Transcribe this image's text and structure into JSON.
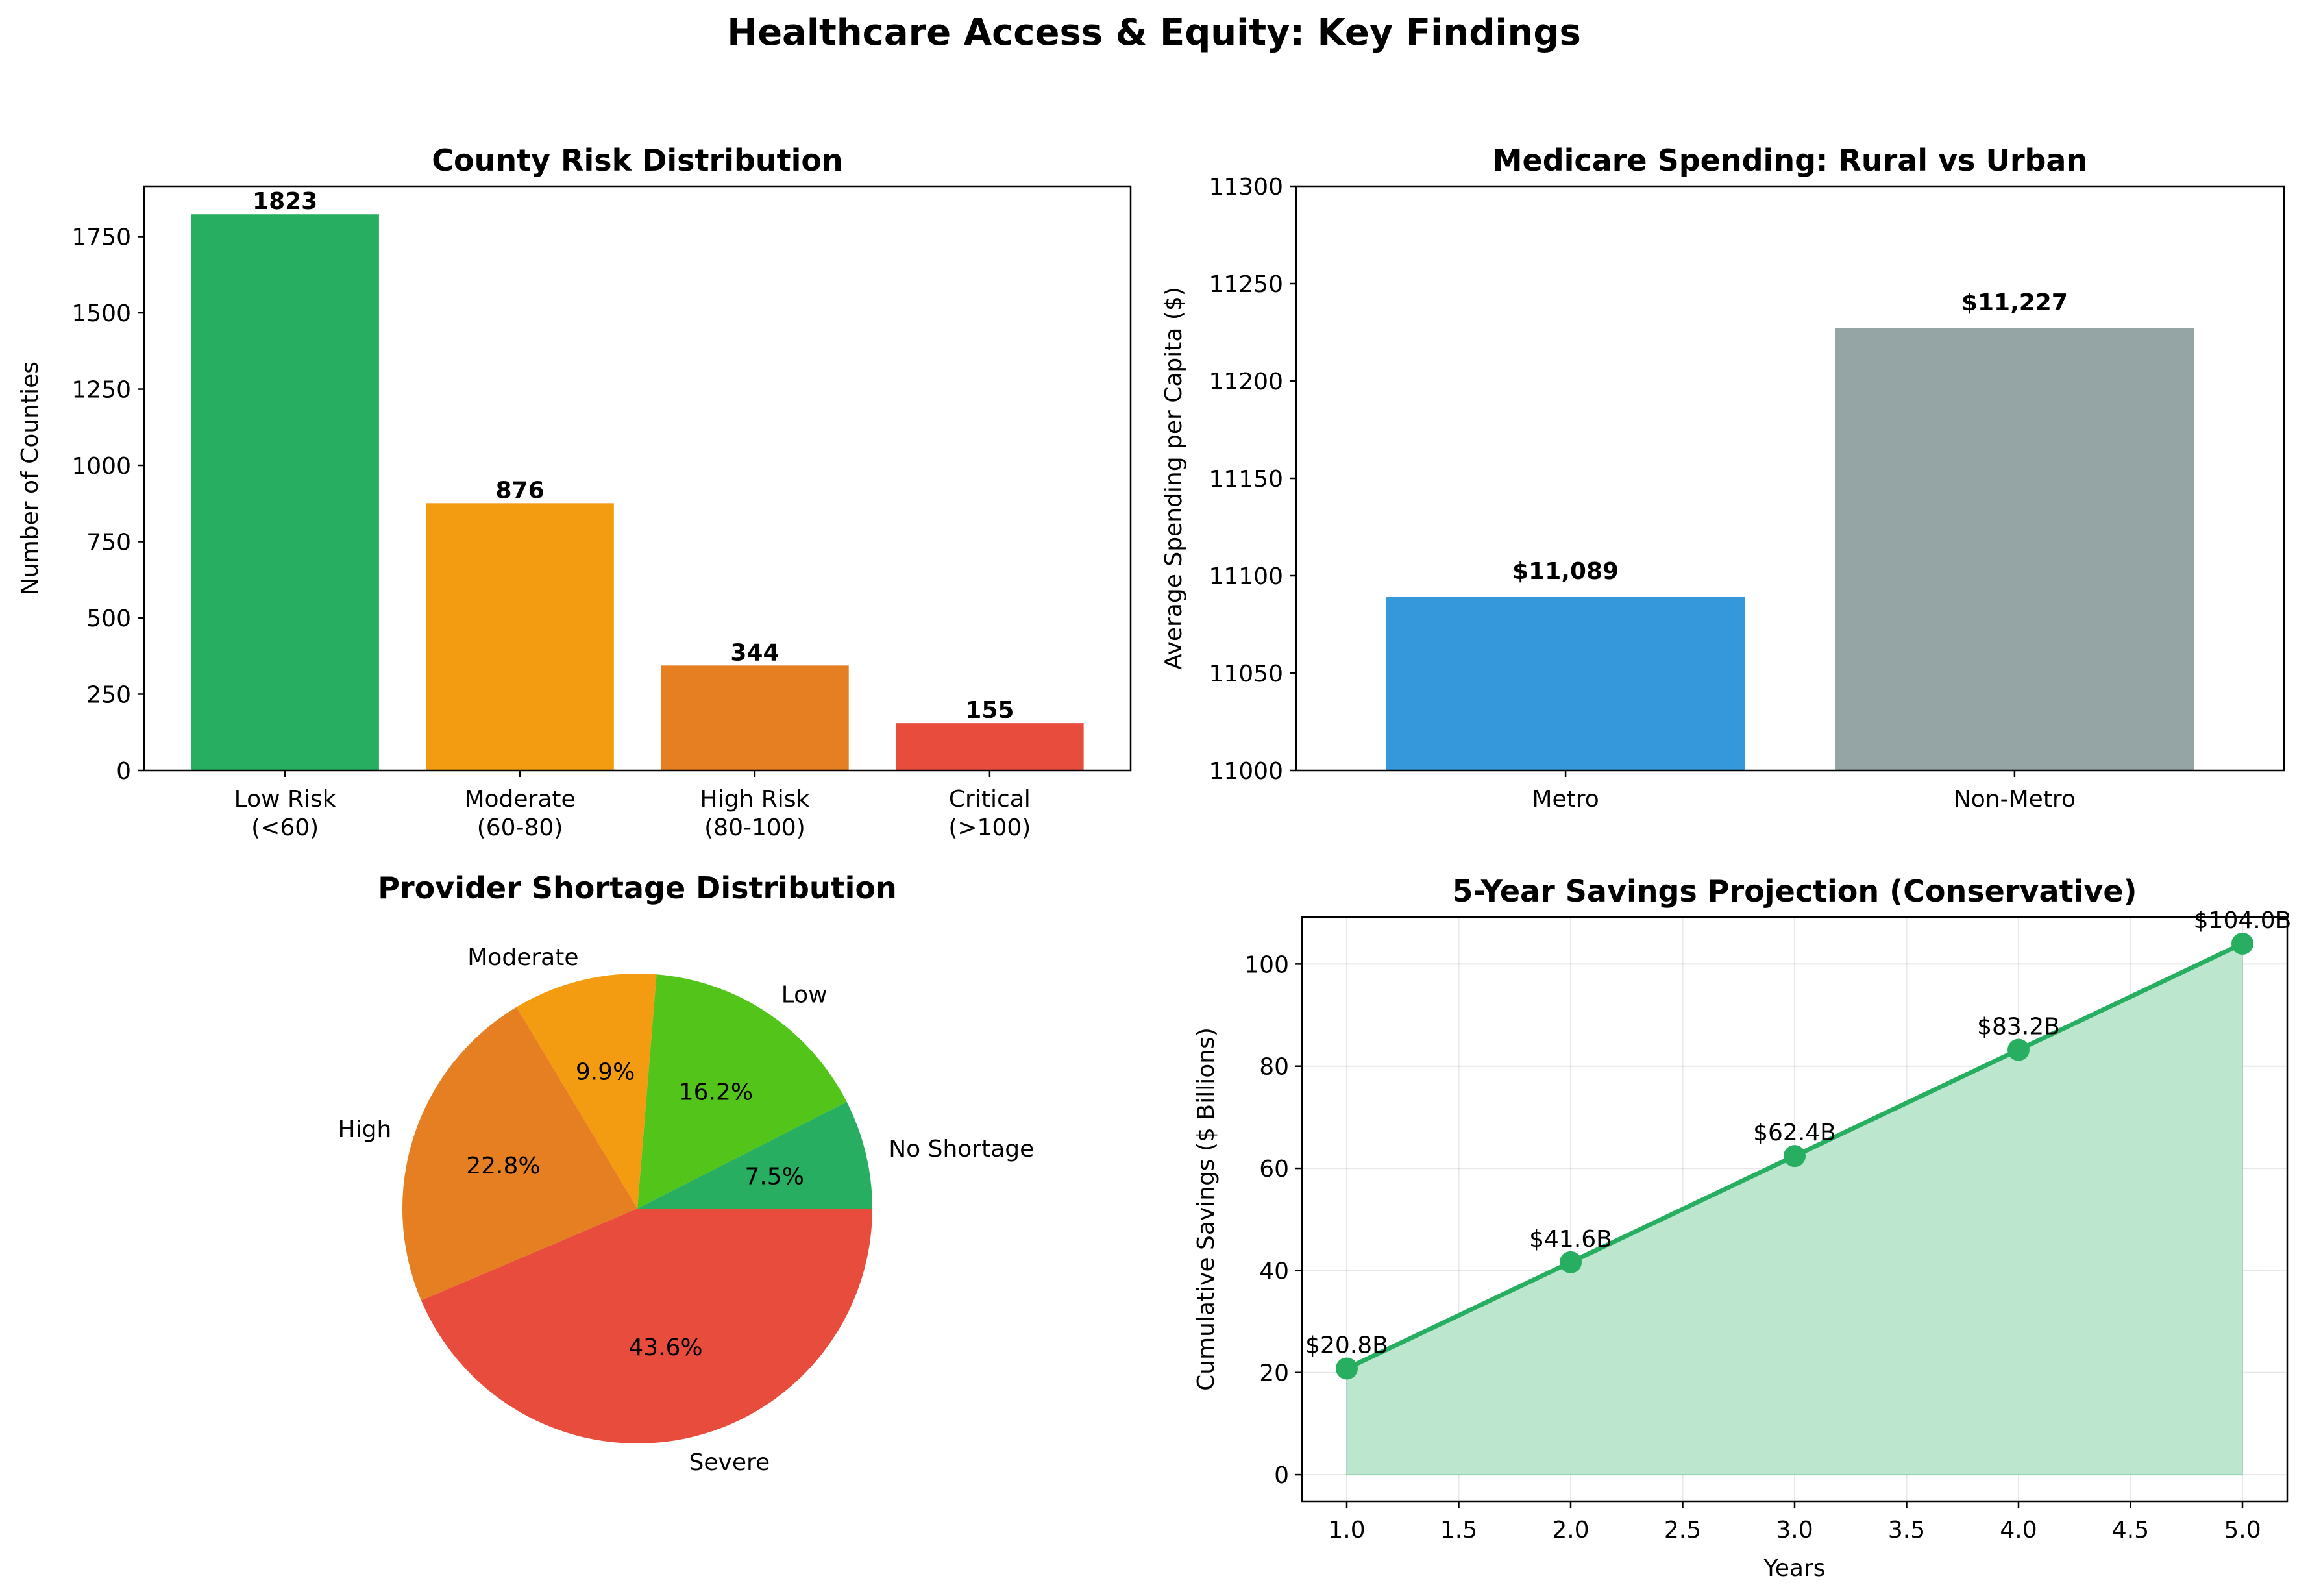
{
  "title": "Healthcare Access & Equity: Key Findings",
  "chart_data": [
    {
      "type": "bar",
      "title": "County Risk Distribution",
      "xlabel": "",
      "ylabel": "Number of Counties",
      "categories": [
        "Low Risk\n(<60)",
        "Moderate\n(60-80)",
        "High Risk\n(80-100)",
        "Critical\n(>100)"
      ],
      "values": [
        1823,
        876,
        344,
        155
      ],
      "value_labels": [
        "1823",
        "876",
        "344",
        "155"
      ],
      "colors": [
        "#27ae60",
        "#f39c12",
        "#e67e22",
        "#e74c3c"
      ],
      "ylim": [
        0,
        1915
      ],
      "yticks": [
        0,
        250,
        500,
        750,
        1000,
        1250,
        1500,
        1750
      ],
      "grid": false
    },
    {
      "type": "bar",
      "title": "Medicare Spending: Rural vs Urban",
      "xlabel": "",
      "ylabel": "Average Spending per Capita ($)",
      "categories": [
        "Metro",
        "Non-Metro"
      ],
      "values": [
        11089,
        11227
      ],
      "value_labels": [
        "$11,089",
        "$11,227"
      ],
      "colors": [
        "#3498db",
        "#95a5a6"
      ],
      "ylim": [
        11000,
        11300
      ],
      "yticks": [
        11000,
        11050,
        11100,
        11150,
        11200,
        11250,
        11300
      ],
      "grid": false
    },
    {
      "type": "pie",
      "title": "Provider Shortage Distribution",
      "labels": [
        "No Shortage",
        "Low",
        "Moderate",
        "High",
        "Severe"
      ],
      "values": [
        7.5,
        16.2,
        9.9,
        22.8,
        43.6
      ],
      "pct_labels": [
        "7.5%",
        "16.2%",
        "9.9%",
        "22.8%",
        "43.6%"
      ],
      "colors": [
        "#27ae60",
        "#52c41a",
        "#f39c12",
        "#e67e22",
        "#e74c3c"
      ],
      "start_angle": 0,
      "direction": "counterclockwise"
    },
    {
      "type": "area",
      "title": "5-Year Savings Projection (Conservative)",
      "xlabel": "Years",
      "ylabel": "Cumulative Savings ($ Billions)",
      "x": [
        1,
        2,
        3,
        4,
        5
      ],
      "y": [
        20.8,
        41.6,
        62.4,
        83.2,
        104.0
      ],
      "point_labels": [
        "$20.8B",
        "$41.6B",
        "$62.4B",
        "$83.2B",
        "$104.0B"
      ],
      "color": "#27ae60",
      "fill_color": "#bde6cf",
      "xlim": [
        0.8,
        5.2
      ],
      "ylim": [
        -5.2,
        109.2
      ],
      "xticks": [
        1.0,
        1.5,
        2.0,
        2.5,
        3.0,
        3.5,
        4.0,
        4.5,
        5.0
      ],
      "yticks": [
        0,
        20,
        40,
        60,
        80,
        100
      ],
      "grid": true
    }
  ]
}
